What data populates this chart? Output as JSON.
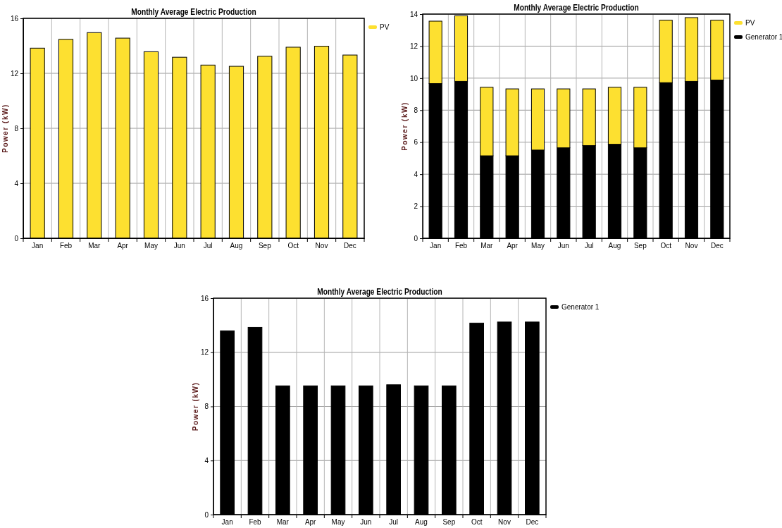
{
  "chart_data": [
    {
      "type": "bar",
      "title": "Monthly Average Electric Production",
      "ylabel": "Power (kW)",
      "categories": [
        "Jan",
        "Feb",
        "Mar",
        "Apr",
        "May",
        "Jun",
        "Jul",
        "Aug",
        "Sep",
        "Oct",
        "Nov",
        "Dec"
      ],
      "series": [
        {
          "name": "PV",
          "color": "#fde030",
          "values": [
            13.83,
            14.47,
            14.96,
            14.56,
            13.57,
            13.17,
            12.6,
            12.51,
            13.24,
            13.9,
            13.97,
            13.33
          ]
        }
      ],
      "ylim": [
        0,
        16
      ],
      "yticks": [
        0,
        4,
        8,
        12,
        16
      ],
      "grid": true,
      "legend": "top right"
    },
    {
      "type": "bar",
      "title": "Monthly Average Electric Production",
      "ylabel": "Power (kW)",
      "categories": [
        "Jan",
        "Feb",
        "Mar",
        "Apr",
        "May",
        "Jun",
        "Jul",
        "Aug",
        "Sep",
        "Oct",
        "Nov",
        "Dec"
      ],
      "stacked": true,
      "series": [
        {
          "name": "Generator 1",
          "color": "#000000",
          "values": [
            9.66,
            9.8,
            5.15,
            5.15,
            5.51,
            5.65,
            5.79,
            5.87,
            5.65,
            9.72,
            9.8,
            9.88
          ]
        },
        {
          "name": "PV",
          "color": "#fde030",
          "values": [
            3.9,
            4.1,
            4.28,
            4.18,
            3.82,
            3.68,
            3.54,
            3.56,
            3.78,
            3.9,
            3.98,
            3.74
          ]
        }
      ],
      "ylim": [
        0,
        14
      ],
      "yticks": [
        0,
        2,
        4,
        6,
        8,
        10,
        12,
        14
      ],
      "grid": true,
      "legend": "top right"
    },
    {
      "type": "bar",
      "title": "Monthly Average Electric Production",
      "ylabel": "Power (kW)",
      "categories": [
        "Jan",
        "Feb",
        "Mar",
        "Apr",
        "May",
        "Jun",
        "Jul",
        "Aug",
        "Sep",
        "Oct",
        "Nov",
        "Dec"
      ],
      "series": [
        {
          "name": "Generator 1",
          "color": "#000000",
          "values": [
            13.59,
            13.84,
            9.52,
            9.52,
            9.52,
            9.52,
            9.6,
            9.52,
            9.52,
            14.16,
            14.24,
            14.24
          ]
        }
      ],
      "ylim": [
        0,
        16
      ],
      "yticks": [
        0,
        4,
        8,
        12,
        16
      ],
      "grid": true,
      "legend": "top right"
    }
  ]
}
